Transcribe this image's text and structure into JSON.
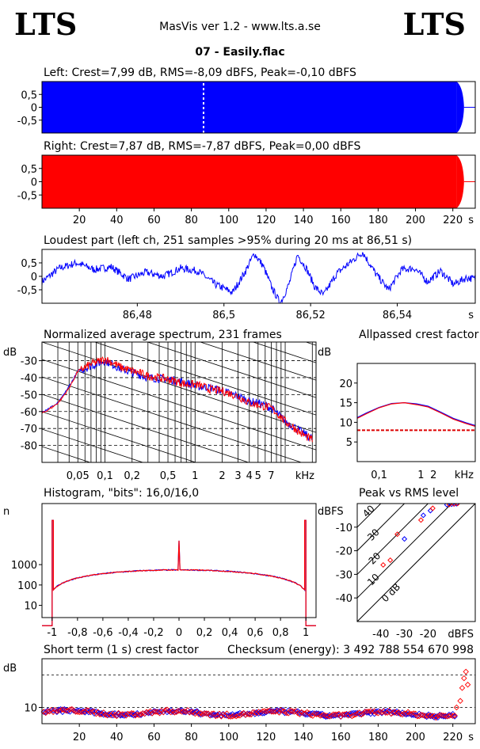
{
  "header": {
    "logo_left": "LTS",
    "logo_right": "LTS",
    "app": "MasVis ver 1.2 - www.lts.a.se",
    "file": "07 - Easily.flac"
  },
  "colors": {
    "left": "#0000ff",
    "right": "#ff0000",
    "grid": "#000000"
  },
  "chart_data": [
    {
      "id": "left-waveform",
      "type": "area",
      "title": "Left: Crest=7,99 dB, RMS=-8,09 dBFS, Peak=-0,10 dBFS",
      "ytick_labels": [
        "0,5",
        "0",
        "-0,5"
      ],
      "yticks": [
        0.5,
        0,
        -0.5
      ],
      "ylim": [
        -1,
        1
      ],
      "xlim": [
        0,
        232
      ],
      "amplitude": 1.0,
      "fade_start_s": 222,
      "end_s": 226,
      "marker_s": 86.51
    },
    {
      "id": "right-waveform",
      "type": "area",
      "title": "Right: Crest=7,87 dB, RMS=-7,87 dBFS, Peak=0,00 dBFS",
      "ytick_labels": [
        "0,5",
        "0",
        "-0,5"
      ],
      "yticks": [
        0.5,
        0,
        -0.5
      ],
      "ylim": [
        -1,
        1
      ],
      "xlim": [
        0,
        232
      ],
      "amplitude": 1.0,
      "fade_start_s": 222,
      "end_s": 226,
      "xticks": [
        20,
        40,
        60,
        80,
        100,
        120,
        140,
        160,
        180,
        200,
        220
      ],
      "xtick_labels": [
        "20",
        "40",
        "60",
        "80",
        "100",
        "120",
        "140",
        "160",
        "180",
        "200",
        "220"
      ],
      "xunit": "s"
    },
    {
      "id": "loudest-part",
      "type": "line",
      "title": "Loudest part (left  ch, 251 samples >95% during 20 ms at 86,51 s)",
      "ytick_labels": [
        "0,5",
        "0",
        "-0,5"
      ],
      "yticks": [
        0.5,
        0,
        -0.5
      ],
      "ylim": [
        -1,
        1
      ],
      "xlim": [
        86.458,
        86.558
      ],
      "xticks": [
        86.48,
        86.5,
        86.52,
        86.54
      ],
      "xtick_labels": [
        "86,48",
        "86,5",
        "86,52",
        "86,54"
      ],
      "xunit": "s",
      "anchors": [
        [
          86.458,
          -0.2
        ],
        [
          86.462,
          0.3
        ],
        [
          86.466,
          0.5
        ],
        [
          86.47,
          0.25
        ],
        [
          86.474,
          0.35
        ],
        [
          86.478,
          -0.1
        ],
        [
          86.482,
          0.15
        ],
        [
          86.486,
          0.0
        ],
        [
          86.49,
          0.3
        ],
        [
          86.494,
          0.2
        ],
        [
          86.498,
          -0.3
        ],
        [
          86.502,
          -0.6
        ],
        [
          86.505,
          0.2
        ],
        [
          86.507,
          0.85
        ],
        [
          86.509,
          0.4
        ],
        [
          86.511,
          -0.4
        ],
        [
          86.513,
          -1.0
        ],
        [
          86.515,
          -0.3
        ],
        [
          86.517,
          0.8
        ],
        [
          86.519,
          0.3
        ],
        [
          86.521,
          -0.4
        ],
        [
          86.523,
          -0.7
        ],
        [
          86.526,
          0.1
        ],
        [
          86.529,
          0.5
        ],
        [
          86.532,
          0.9
        ],
        [
          86.535,
          0.1
        ],
        [
          86.538,
          -0.5
        ],
        [
          86.541,
          0.25
        ],
        [
          86.544,
          0.3
        ],
        [
          86.547,
          -0.2
        ],
        [
          86.55,
          0.2
        ],
        [
          86.553,
          -0.3
        ],
        [
          86.556,
          -0.05
        ],
        [
          86.558,
          -0.1
        ]
      ]
    },
    {
      "id": "spectrum",
      "type": "line",
      "title": "Normalized average spectrum, 231 frames",
      "ylabel": "dB",
      "xunit": "kHz",
      "ylim": [
        -90,
        -19
      ],
      "xlim_khz": [
        0.02,
        22
      ],
      "yticks": [
        -30,
        -40,
        -50,
        -60,
        -70,
        -80
      ],
      "ytick_labels": [
        "-30",
        "-40",
        "-50",
        "-60",
        "-70",
        "-80"
      ],
      "xticks_khz": [
        0.05,
        0.1,
        0.2,
        0.5,
        1,
        2,
        3,
        4,
        5,
        7
      ],
      "xtick_labels": [
        "0,05",
        "0,1",
        "0,2",
        "0,5",
        "1",
        "2",
        "3",
        "4",
        "5",
        "7"
      ],
      "left_db": [
        [
          0.02,
          -60
        ],
        [
          0.03,
          -55
        ],
        [
          0.04,
          -45
        ],
        [
          0.05,
          -36
        ],
        [
          0.07,
          -33
        ],
        [
          0.1,
          -30
        ],
        [
          0.15,
          -35
        ],
        [
          0.2,
          -37
        ],
        [
          0.3,
          -40
        ],
        [
          0.5,
          -41
        ],
        [
          0.8,
          -43
        ],
        [
          1,
          -45
        ],
        [
          1.5,
          -46
        ],
        [
          2,
          -48
        ],
        [
          3,
          -51
        ],
        [
          4,
          -54
        ],
        [
          5,
          -55
        ],
        [
          7,
          -58
        ],
        [
          10,
          -66
        ],
        [
          15,
          -72
        ],
        [
          20,
          -76
        ]
      ],
      "right_db": [
        [
          0.02,
          -61
        ],
        [
          0.03,
          -55
        ],
        [
          0.04,
          -46
        ],
        [
          0.05,
          -36
        ],
        [
          0.07,
          -32
        ],
        [
          0.1,
          -29
        ],
        [
          0.15,
          -34
        ],
        [
          0.2,
          -36
        ],
        [
          0.3,
          -39
        ],
        [
          0.5,
          -41
        ],
        [
          0.8,
          -44
        ],
        [
          1,
          -44
        ],
        [
          1.5,
          -47
        ],
        [
          2,
          -48
        ],
        [
          3,
          -51
        ],
        [
          4,
          -55
        ],
        [
          5,
          -56
        ],
        [
          7,
          -58
        ],
        [
          10,
          -66
        ],
        [
          15,
          -73
        ],
        [
          20,
          -77
        ]
      ]
    },
    {
      "id": "allpassed-crest",
      "type": "line",
      "title": "Allpassed crest factor",
      "ylabel": "dB",
      "xunit": "kHz",
      "ylim": [
        0,
        25
      ],
      "xlim_khz": [
        0.03,
        20
      ],
      "yticks": [
        20,
        15,
        10,
        5
      ],
      "ytick_labels": [
        "20",
        "15",
        "10",
        "5"
      ],
      "xticks_khz": [
        0.1,
        1,
        2
      ],
      "xtick_labels": [
        "0,1",
        "1",
        "2"
      ],
      "left_db": [
        [
          0.03,
          11.2
        ],
        [
          0.05,
          12.4
        ],
        [
          0.1,
          13.8
        ],
        [
          0.2,
          14.8
        ],
        [
          0.4,
          15.0
        ],
        [
          0.8,
          14.7
        ],
        [
          1.5,
          14.1
        ],
        [
          3,
          12.6
        ],
        [
          6,
          11.0
        ],
        [
          12,
          9.9
        ],
        [
          20,
          9.2
        ]
      ],
      "right_db": [
        [
          0.03,
          11.0
        ],
        [
          0.05,
          12.2
        ],
        [
          0.1,
          13.7
        ],
        [
          0.2,
          14.7
        ],
        [
          0.4,
          15.0
        ],
        [
          0.8,
          14.5
        ],
        [
          1.5,
          13.9
        ],
        [
          3,
          12.4
        ],
        [
          6,
          10.8
        ],
        [
          12,
          9.7
        ],
        [
          20,
          9.0
        ]
      ],
      "reference_db": 8.0
    },
    {
      "id": "histogram",
      "type": "line",
      "title": "Histogram, \"bits\": 16,0/16,0",
      "ylabel": "n",
      "yscale": "log",
      "ylim_log": [
        0.4,
        6.0
      ],
      "xlim": [
        -1.08,
        1.08
      ],
      "yticks": [
        1000,
        100,
        10
      ],
      "ytick_labels": [
        "1000",
        "100",
        "10"
      ],
      "xticks": [
        -1,
        -0.8,
        -0.6,
        -0.4,
        -0.2,
        0,
        0.2,
        0.4,
        0.6,
        0.8,
        1
      ],
      "xtick_labels": [
        "-1",
        "-0,8",
        "-0,6",
        "-0,4",
        "-0,2",
        "0",
        "0,2",
        "0,4",
        "0,6",
        "0,8",
        "1"
      ],
      "center_count": 550,
      "edge_count": 45,
      "clip_spike": 150000
    },
    {
      "id": "peak-vs-rms",
      "type": "scatter",
      "title": "Peak vs RMS level",
      "ylabel": "dBFS",
      "xunit": "dBFS",
      "xlim": [
        -50,
        0
      ],
      "ylim": [
        -50,
        0
      ],
      "yticks": [
        -10,
        -20,
        -30,
        -40
      ],
      "ytick_labels": [
        "-10",
        "-20",
        "-30",
        "-40"
      ],
      "xticks": [
        -40,
        -30,
        -20
      ],
      "xtick_labels": [
        "-40",
        "-30",
        "-20"
      ],
      "diagonal_labels": [
        "40",
        "30",
        "20",
        "10",
        "0 dB"
      ],
      "left_points": [
        [
          -30,
          -15
        ],
        [
          -22,
          -5
        ],
        [
          -19,
          -3
        ],
        [
          -12,
          -0.5
        ],
        [
          -10,
          -0.3
        ],
        [
          -9,
          -0.2
        ],
        [
          -8,
          -0.1
        ]
      ],
      "right_points": [
        [
          -33,
          -13
        ],
        [
          -36,
          -24
        ],
        [
          -39,
          -26
        ],
        [
          -23,
          -7
        ],
        [
          -18,
          -2
        ],
        [
          -11,
          -0.4
        ],
        [
          -9,
          -0.1
        ],
        [
          -7.5,
          0
        ]
      ]
    },
    {
      "id": "short-term-crest",
      "type": "scatter",
      "title": "Short term (1 s) crest factor",
      "checksum": "Checksum (energy):  3 492 788 554 670 998",
      "ylabel": "dB",
      "ylim": [
        5,
        25
      ],
      "xlim": [
        0,
        232
      ],
      "yticks": [
        10
      ],
      "ytick_labels": [
        "10"
      ],
      "dashed_db": [
        10,
        20
      ],
      "xticks": [
        20,
        40,
        60,
        80,
        100,
        120,
        140,
        160,
        180,
        200,
        220
      ],
      "xtick_labels": [
        "20",
        "40",
        "60",
        "80",
        "100",
        "120",
        "140",
        "160",
        "180",
        "200",
        "220"
      ],
      "xunit": "s",
      "typical_db": 8.5,
      "ending_right": [
        [
          222,
          10
        ],
        [
          224,
          12
        ],
        [
          225,
          16
        ],
        [
          226,
          19
        ],
        [
          227,
          21
        ],
        [
          228,
          17
        ]
      ]
    }
  ]
}
